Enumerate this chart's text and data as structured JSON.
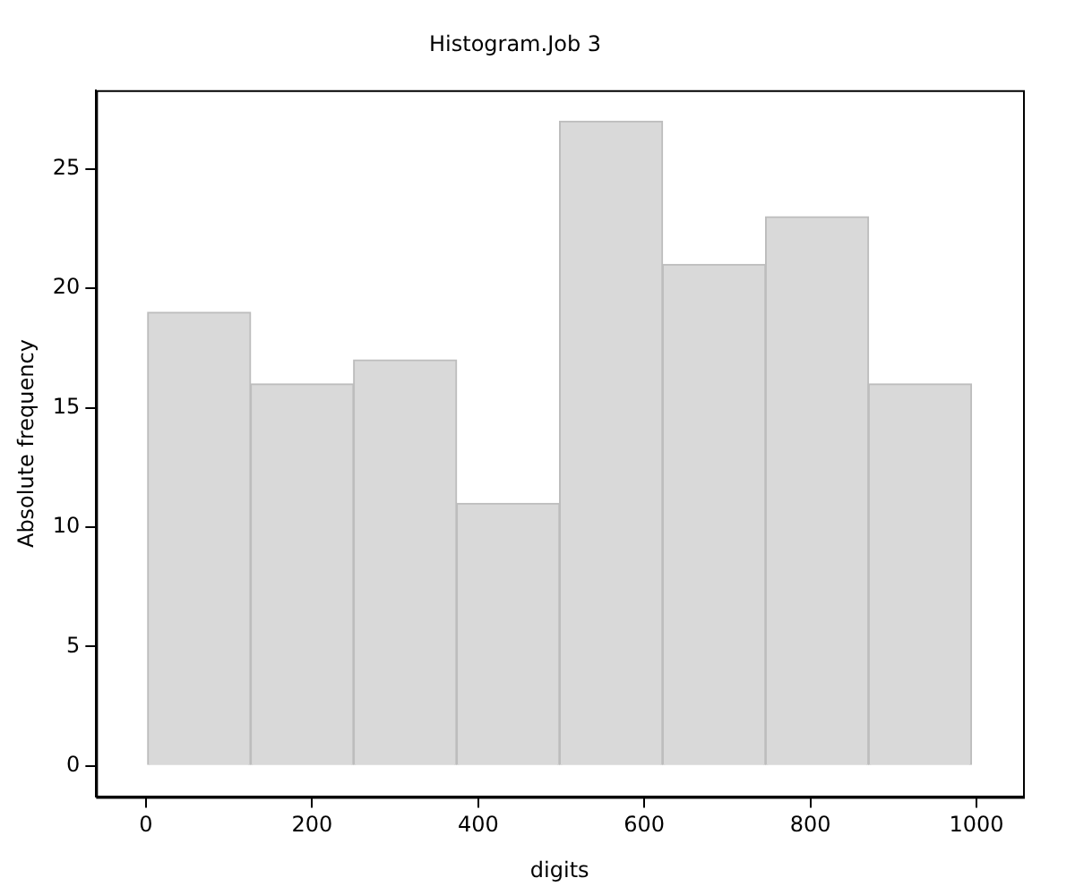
{
  "chart_data": {
    "type": "histogram",
    "title": "Histogram.Job 3",
    "xlabel": "digits",
    "ylabel": "Absolute frequency",
    "bins": [
      2,
      126,
      250,
      374,
      498,
      622,
      746,
      870,
      994
    ],
    "values": [
      19,
      16,
      17,
      11,
      27,
      21,
      23,
      16
    ],
    "color": "#d9d9d9",
    "xlim": [
      -60,
      1056
    ],
    "xticks": [
      0,
      200,
      400,
      600,
      800,
      1000
    ],
    "ylim": [
      -1.3,
      28.3
    ],
    "yticks": [
      0,
      5,
      10,
      15,
      20,
      25
    ],
    "grid": false,
    "legend": false
  }
}
